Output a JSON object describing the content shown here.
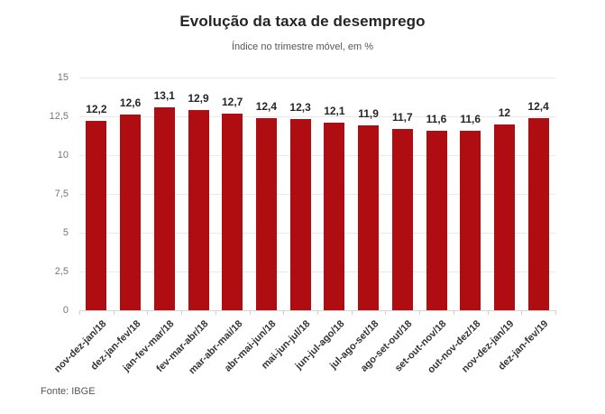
{
  "chart_data": {
    "type": "bar",
    "title": "Evolução da taxa de desemprego",
    "subtitle": "Índice no trimestre móvel, em %",
    "categories": [
      "nov-dez-jan/18",
      "dez-jan-fev/18",
      "jan-fev-mar/18",
      "fev-mar-abr/18",
      "mar-abr-mai/18",
      "abr-mai-jun/18",
      "mai-jun-jul/18",
      "jun-jul-ago/18",
      "jul-ago-set/18",
      "ago-set-out/18",
      "set-out-nov/18",
      "out-nov-dez/18",
      "nov-dez-jan/19",
      "dez-jan-fev/19"
    ],
    "values": [
      12.2,
      12.6,
      13.1,
      12.9,
      12.7,
      12.4,
      12.3,
      12.1,
      11.9,
      11.7,
      11.6,
      11.6,
      12,
      12.4
    ],
    "value_labels": [
      "12,2",
      "12,6",
      "13,1",
      "12,9",
      "12,7",
      "12,4",
      "12,3",
      "12,1",
      "11,9",
      "11,7",
      "11,6",
      "11,6",
      "12",
      "12,4"
    ],
    "xlabel": "",
    "ylabel": "",
    "ylim": [
      0,
      15
    ],
    "yticks": [
      0,
      2.5,
      5,
      7.5,
      10,
      12.5,
      15
    ],
    "ytick_labels": [
      "0",
      "2,5",
      "5",
      "7,5",
      "10",
      "12,5",
      "15"
    ],
    "bar_color": "#b00d12",
    "grid": true,
    "legend": "none"
  },
  "footer": {
    "source": "Fonte: IBGE"
  }
}
